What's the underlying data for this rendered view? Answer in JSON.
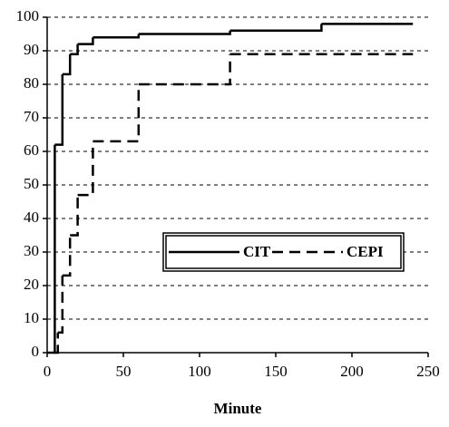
{
  "chart_data": {
    "type": "line",
    "step": "post",
    "x_label": "Minute",
    "xlim": [
      0,
      250
    ],
    "xticks": [
      0,
      50,
      100,
      150,
      200,
      250
    ],
    "ylim": [
      0,
      100
    ],
    "yticks": [
      0,
      10,
      20,
      30,
      40,
      50,
      60,
      70,
      80,
      90,
      100
    ],
    "grid": true,
    "legend": "right",
    "series": [
      {
        "name": "CIT",
        "color": "#000000",
        "dash": "solid",
        "x": [
          0,
          5,
          10,
          15,
          20,
          30,
          60,
          120,
          180,
          240
        ],
        "values": [
          0,
          62,
          83,
          89,
          92,
          94,
          95,
          96,
          98,
          98
        ]
      },
      {
        "name": "CEPI",
        "color": "#000000",
        "dash": "dashed",
        "x": [
          5,
          7,
          10,
          15,
          20,
          30,
          60,
          120,
          240
        ],
        "values": [
          0,
          6,
          23,
          35,
          47,
          63,
          80,
          89,
          89
        ]
      }
    ]
  }
}
